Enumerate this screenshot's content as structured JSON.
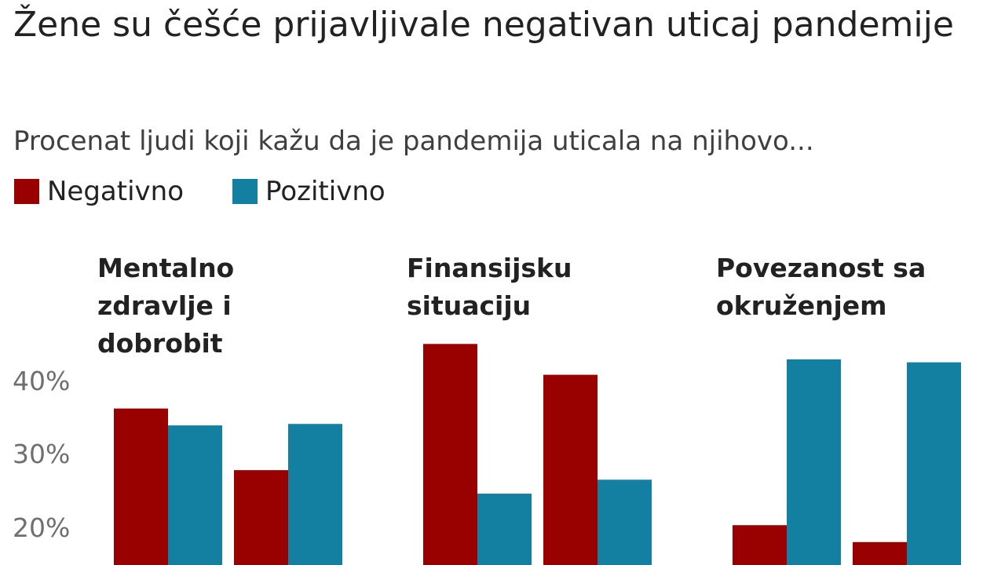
{
  "chart_data": {
    "type": "bar",
    "title": "Žene su češće prijavljivale negativan uticaj pandemije",
    "subtitle": "Procenat ljudi koji kažu da je pandemija uticala na njihovo...",
    "legend": {
      "placement": "top-left",
      "items": [
        {
          "label": "Negativno",
          "color": "#990000"
        },
        {
          "label": "Pozitivno",
          "color": "#1380A1"
        }
      ]
    },
    "y_ticks": [
      "40%",
      "30%",
      "20%"
    ],
    "y_tick_values": [
      40,
      30,
      20
    ],
    "grid": false,
    "panels": [
      {
        "title": "Mentalno zdravlje i dobrobit",
        "groups": [
          {
            "negativno": 36.3,
            "pozitivno": 34.0
          },
          {
            "negativno": 27.9,
            "pozitivno": 34.2
          }
        ]
      },
      {
        "title": "Finansijsku situaciju",
        "groups": [
          {
            "negativno": 45.1,
            "pozitivno": 24.7
          },
          {
            "negativno": 40.9,
            "pozitivno": 26.6
          }
        ]
      },
      {
        "title": "Povezanost sa okruženjem",
        "groups": [
          {
            "negativno": 20.4,
            "pozitivno": 43.0
          },
          {
            "negativno": 18.1,
            "pozitivno": 42.6
          }
        ]
      }
    ]
  }
}
